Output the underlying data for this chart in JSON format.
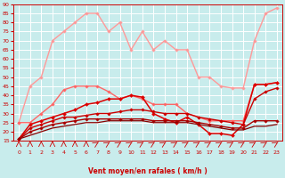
{
  "bg_color": "#c8ecec",
  "grid_color": "#ffffff",
  "xlabel": "Vent moyen/en rafales ( km/h )",
  "xlabel_color": "#cc0000",
  "tick_color": "#cc0000",
  "x_ticks": [
    0,
    1,
    2,
    3,
    4,
    5,
    6,
    7,
    8,
    9,
    10,
    11,
    12,
    13,
    14,
    15,
    16,
    17,
    18,
    19,
    20,
    21,
    22,
    23
  ],
  "ylim": [
    15,
    90
  ],
  "yticks": [
    15,
    20,
    25,
    30,
    35,
    40,
    45,
    50,
    55,
    60,
    65,
    70,
    75,
    80,
    85,
    90
  ],
  "lines": [
    {
      "color": "#ff9999",
      "linewidth": 1.0,
      "marker": "D",
      "markersize": 1.8,
      "y": [
        25,
        45,
        50,
        70,
        75,
        80,
        85,
        85,
        75,
        80,
        65,
        75,
        65,
        70,
        65,
        65,
        50,
        50,
        45,
        44,
        44,
        70,
        85,
        88
      ]
    },
    {
      "color": "#ff6666",
      "linewidth": 1.0,
      "marker": "D",
      "markersize": 1.8,
      "y": [
        25,
        25,
        30,
        35,
        43,
        45,
        45,
        45,
        42,
        38,
        40,
        38,
        35,
        35,
        35,
        30,
        28,
        26,
        26,
        26,
        26,
        46,
        46,
        47
      ]
    },
    {
      "color": "#dd0000",
      "linewidth": 1.1,
      "marker": "D",
      "markersize": 2.0,
      "y": [
        16,
        24,
        26,
        28,
        30,
        32,
        35,
        36,
        38,
        38,
        40,
        39,
        30,
        27,
        25,
        28,
        24,
        19,
        19,
        18,
        24,
        46,
        46,
        47
      ]
    },
    {
      "color": "#cc0000",
      "linewidth": 1.0,
      "marker": "D",
      "markersize": 1.8,
      "y": [
        16,
        22,
        24,
        26,
        28,
        28,
        29,
        30,
        30,
        31,
        32,
        32,
        31,
        30,
        30,
        30,
        28,
        27,
        26,
        25,
        24,
        38,
        42,
        44
      ]
    },
    {
      "color": "#aa0000",
      "linewidth": 1.0,
      "marker": "D",
      "markersize": 1.8,
      "y": [
        16,
        20,
        22,
        24,
        25,
        26,
        27,
        27,
        27,
        27,
        27,
        27,
        26,
        26,
        26,
        26,
        25,
        24,
        23,
        22,
        22,
        26,
        26,
        26
      ]
    },
    {
      "color": "#880000",
      "linewidth": 0.9,
      "marker": null,
      "markersize": 0,
      "y": [
        16,
        18,
        20,
        22,
        23,
        24,
        25,
        25,
        26,
        26,
        26,
        26,
        25,
        25,
        25,
        25,
        24,
        23,
        22,
        21,
        21,
        23,
        23,
        24
      ]
    }
  ],
  "arrow_straight": [
    0,
    1,
    2,
    3,
    4,
    5,
    6
  ],
  "arrow_diagonal": [
    7,
    8,
    9,
    10,
    11,
    12,
    13,
    14,
    15,
    16,
    17,
    18,
    19,
    20,
    21,
    22,
    23
  ]
}
